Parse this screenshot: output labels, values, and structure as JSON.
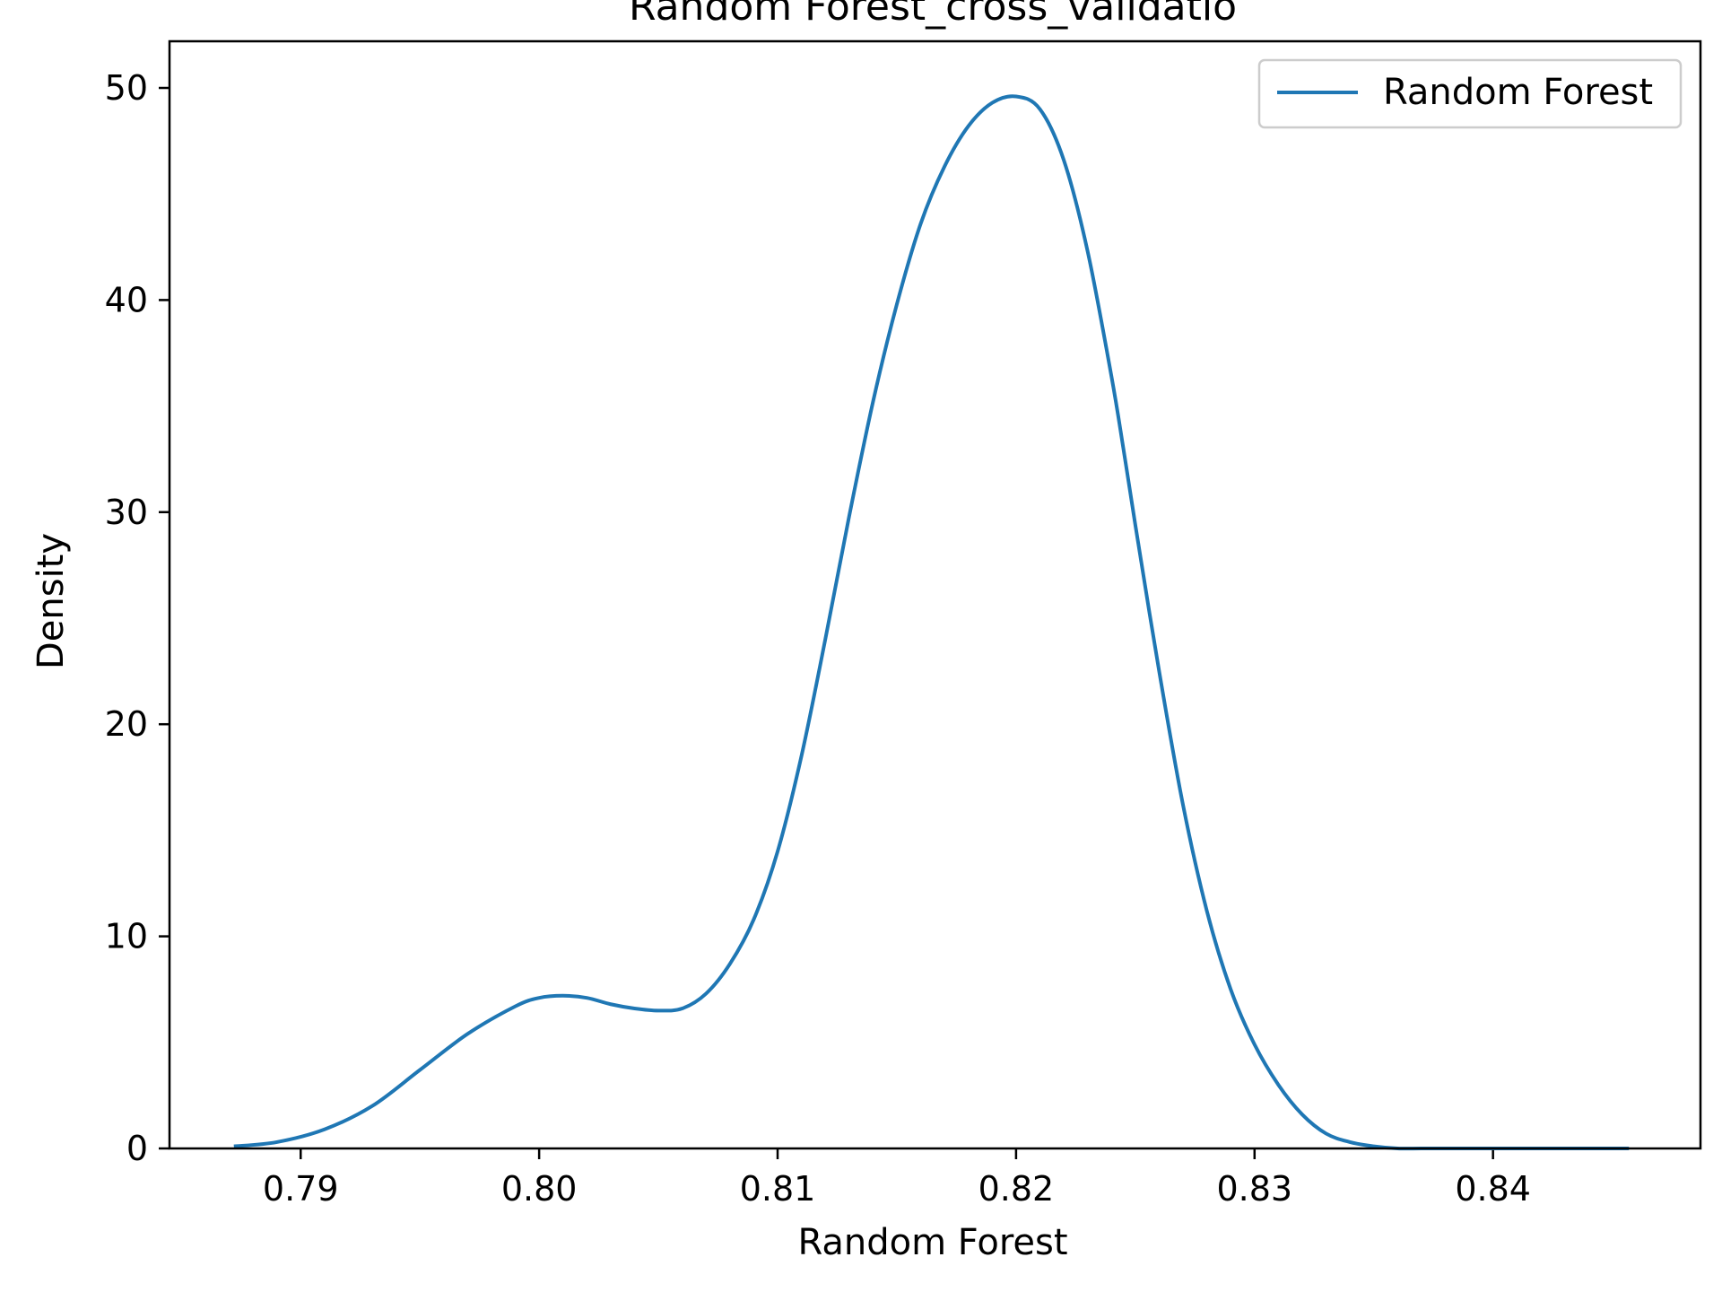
{
  "chart_data": {
    "type": "line",
    "title": "Random Forest_cross_validatio",
    "xlabel": "Random Forest",
    "ylabel": "Density",
    "xlim": [
      0.7845,
      0.8487
    ],
    "ylim": [
      0,
      52.2
    ],
    "xticks": [
      "0.79",
      "0.80",
      "0.81",
      "0.82",
      "0.83",
      "0.84"
    ],
    "xtick_values": [
      0.79,
      0.8,
      0.81,
      0.82,
      0.83,
      0.84
    ],
    "yticks": [
      "0",
      "10",
      "20",
      "30",
      "40",
      "50"
    ],
    "ytick_values": [
      0,
      10,
      20,
      30,
      40,
      50
    ],
    "grid": false,
    "legend": {
      "placement": "top-right",
      "entries": [
        "Random Forest"
      ]
    },
    "series": [
      {
        "name": "Random Forest",
        "color": "#1f77b4",
        "x": [
          0.7872,
          0.789,
          0.791,
          0.793,
          0.795,
          0.797,
          0.799,
          0.8,
          0.801,
          0.802,
          0.803,
          0.804,
          0.805,
          0.806,
          0.807,
          0.808,
          0.809,
          0.81,
          0.811,
          0.812,
          0.813,
          0.814,
          0.815,
          0.816,
          0.817,
          0.818,
          0.819,
          0.82,
          0.821,
          0.822,
          0.823,
          0.824,
          0.8245,
          0.825,
          0.826,
          0.827,
          0.828,
          0.829,
          0.83,
          0.831,
          0.832,
          0.833,
          0.834,
          0.835,
          0.836,
          0.837,
          0.838,
          0.839,
          0.84,
          0.841,
          0.842,
          0.844,
          0.8457
        ],
        "y": [
          0.1,
          0.3,
          0.9,
          2.0,
          3.7,
          5.4,
          6.7,
          7.1,
          7.2,
          7.1,
          6.8,
          6.6,
          6.5,
          6.6,
          7.3,
          8.7,
          10.8,
          14.0,
          18.5,
          24.0,
          29.8,
          35.2,
          39.8,
          43.6,
          46.3,
          48.2,
          49.3,
          49.6,
          49.0,
          46.6,
          42.3,
          36.4,
          33.0,
          29.4,
          22.5,
          16.2,
          11.2,
          7.5,
          4.9,
          3.0,
          1.6,
          0.7,
          0.3,
          0.1,
          0.0,
          0.0,
          0.0,
          0.0,
          0.0,
          0.0,
          0.0,
          0.0,
          0.0
        ]
      }
    ]
  }
}
